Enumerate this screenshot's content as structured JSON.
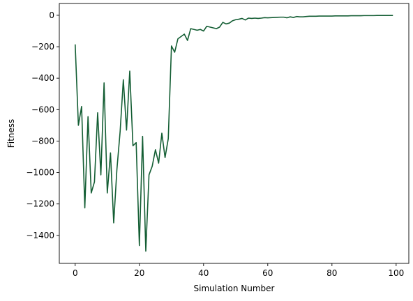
{
  "chart_data": {
    "type": "line",
    "title": "",
    "xlabel": "Simulation Number",
    "ylabel": "Fitness",
    "xlim": [
      -4.95,
      103.95
    ],
    "ylim": [
      -1578,
      75
    ],
    "xticks": [
      0,
      20,
      40,
      60,
      80,
      100
    ],
    "yticks": [
      0,
      -200,
      -400,
      -600,
      -800,
      -1000,
      -1200,
      -1400
    ],
    "xtick_labels": [
      "0",
      "20",
      "40",
      "60",
      "80",
      "100"
    ],
    "ytick_labels": [
      "0",
      "−200",
      "−400",
      "−600",
      "−800",
      "−1000",
      "−1200",
      "−1400"
    ],
    "grid": false,
    "legend": "none",
    "line_color": "#145e34",
    "series": [
      {
        "x": [
          0,
          1,
          2,
          3,
          4,
          5,
          6,
          7,
          8,
          9,
          10,
          11,
          12,
          13,
          14,
          15,
          16,
          17,
          18,
          19,
          20,
          21,
          22,
          23,
          24,
          25,
          26,
          27,
          28,
          29,
          30,
          31,
          32,
          33,
          34,
          35,
          36,
          37,
          38,
          39,
          40,
          41,
          42,
          43,
          44,
          45,
          46,
          47,
          48,
          49,
          50,
          51,
          52,
          53,
          54,
          55,
          56,
          57,
          58,
          59,
          60,
          61,
          62,
          63,
          64,
          65,
          66,
          67,
          68,
          69,
          70,
          71,
          72,
          73,
          74,
          75,
          76,
          77,
          78,
          79,
          80,
          81,
          82,
          83,
          84,
          85,
          86,
          87,
          88,
          89,
          90,
          91,
          92,
          93,
          94,
          95,
          96,
          97,
          98,
          99
        ],
        "values": [
          -185,
          -700,
          -580,
          -1225,
          -645,
          -1130,
          -1060,
          -620,
          -1015,
          -430,
          -1130,
          -875,
          -1320,
          -980,
          -740,
          -410,
          -730,
          -355,
          -830,
          -810,
          -1465,
          -770,
          -1500,
          -1015,
          -960,
          -855,
          -940,
          -750,
          -905,
          -785,
          -195,
          -235,
          -150,
          -135,
          -120,
          -160,
          -85,
          -90,
          -95,
          -90,
          -100,
          -70,
          -75,
          -80,
          -85,
          -75,
          -45,
          -55,
          -50,
          -35,
          -28,
          -25,
          -20,
          -30,
          -18,
          -20,
          -18,
          -20,
          -18,
          -15,
          -16,
          -15,
          -14,
          -13,
          -12,
          -12,
          -16,
          -10,
          -14,
          -8,
          -10,
          -10,
          -8,
          -6,
          -6,
          -6,
          -5,
          -5,
          -5,
          -5,
          -5,
          -4,
          -4,
          -4,
          -4,
          -4,
          -3,
          -3,
          -3,
          -3,
          -2,
          -2,
          -2,
          -2,
          -1,
          -1,
          -1,
          -1,
          -1,
          -1
        ]
      }
    ]
  }
}
